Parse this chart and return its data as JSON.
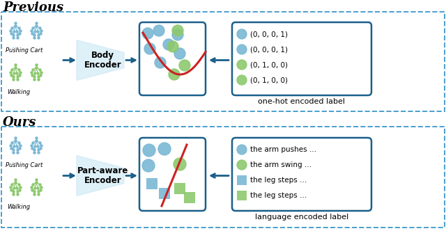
{
  "skeleton_blue": "#7ab8d4",
  "skeleton_green": "#8dc96e",
  "dot_blue": "#7ab8d4",
  "dot_green": "#8dc96e",
  "sq_blue": "#7ab8d4",
  "sq_green": "#8dc96e",
  "encoder_fill": "#cde8f5",
  "arrow_color": "#1a5f8a",
  "box_edge": "#1a5f8a",
  "dash_color": "#4a9fcf",
  "red_color": "#cc2222",
  "bg": "#ffffff",
  "title_prev": "Previous",
  "title_ours": "Ours",
  "push_label": "Pushing Cart",
  "walk_label": "Walking",
  "enc_top": [
    "Body",
    "Encoder"
  ],
  "enc_bot": [
    "Part-aware",
    "Encoder"
  ],
  "one_hot": [
    "(0, 0, 0, 1)",
    "(0, 0, 0, 1)",
    "(0, 1, 0, 0)",
    "(0, 1, 0, 0)"
  ],
  "lang_text": [
    "the arm pushes …",
    "the arm swing …",
    "the leg steps …",
    "the leg steps …"
  ],
  "cap_top": "one-hot encoded label",
  "cap_bot": "language encoded label"
}
